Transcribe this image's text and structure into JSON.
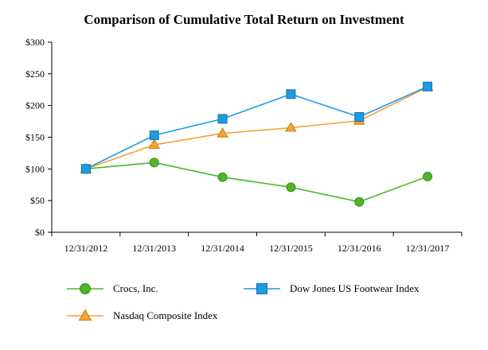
{
  "title": "Comparison of Cumulative Total Return on Investment",
  "chart_data": {
    "type": "line",
    "title": "Comparison of Cumulative Total Return on Investment",
    "xlabel": "",
    "ylabel": "",
    "x_categories": [
      "12/31/2012",
      "12/31/2013",
      "12/31/2014",
      "12/31/2015",
      "12/31/2016",
      "12/31/2017"
    ],
    "series": [
      {
        "name": "Crocs, Inc.",
        "marker": "circle",
        "color": "#4fb628",
        "edge": "#3c8a1e",
        "values": [
          100,
          110,
          87,
          71,
          48,
          88
        ]
      },
      {
        "name": "Dow Jones US Footwear Index",
        "marker": "square",
        "color": "#1d9ce5",
        "edge": "#1173b0",
        "values": [
          100,
          153,
          179,
          218,
          182,
          230
        ]
      },
      {
        "name": "Nasdaq Composite Index",
        "marker": "triangle",
        "color": "#f7a237",
        "edge": "#c87d1a",
        "values": [
          100,
          138,
          156,
          165,
          176,
          229
        ]
      }
    ],
    "ylim": [
      0,
      300
    ],
    "ytick_labels": [
      "$0",
      "$50",
      "$100",
      "$150",
      "$200",
      "$250",
      "$300"
    ],
    "grid": false,
    "legend_position": "bottom",
    "axis_color": "#000000",
    "text_color": "#000000"
  }
}
